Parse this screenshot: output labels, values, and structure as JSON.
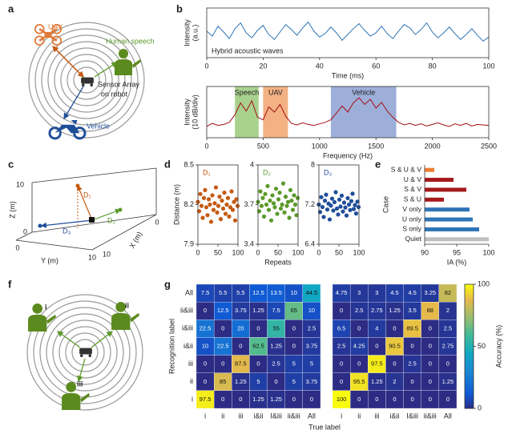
{
  "panel_labels": [
    "a",
    "b",
    "c",
    "d",
    "e",
    "f",
    "g"
  ],
  "diagram_a": {
    "uav": "UAV",
    "speech": "Human speech",
    "robot": [
      "Sensor Array",
      "on robot"
    ],
    "vehicle": "Vehicle"
  },
  "diagram_c": {
    "z_label": "Z (m)",
    "y_label": "Y (m)",
    "x_label": "X (m)",
    "z_ticks": [
      "10",
      "0"
    ],
    "y_ticks": [
      "0",
      "10"
    ],
    "x_ticks": [
      "10",
      "0"
    ],
    "sources": [
      "D₁",
      "D₂",
      "D₃"
    ]
  },
  "diagram_f": {
    "persons": [
      "i",
      "ii",
      "iii"
    ]
  },
  "chart_data": [
    {
      "type": "line",
      "annotation": "Hybrid acoustic waves",
      "x_label": "Time (ms)",
      "y_label": [
        "Intensity",
        "(a.u.)"
      ],
      "color": "#2e75b6",
      "x": [
        0,
        2,
        4,
        6,
        8,
        10,
        12,
        14,
        16,
        18,
        20,
        22,
        24,
        26,
        28,
        30,
        32,
        34,
        36,
        38,
        40,
        42,
        44,
        46,
        48,
        50,
        52,
        54,
        56,
        58,
        60,
        62,
        64,
        66,
        68,
        70,
        72,
        74,
        76,
        78,
        80,
        82,
        84,
        86,
        88,
        90,
        92,
        94,
        96,
        98,
        100
      ],
      "values": [
        5.2,
        4.6,
        5.8,
        5.1,
        4.3,
        5.5,
        6.2,
        5.0,
        4.4,
        5.3,
        5.9,
        4.8,
        4.2,
        5.1,
        6.0,
        5.4,
        4.7,
        5.6,
        6.3,
        5.2,
        4.5,
        4.9,
        5.7,
        5.0,
        4.1,
        4.8,
        5.5,
        6.1,
        5.3,
        4.6,
        5.0,
        5.8,
        4.9,
        4.3,
        5.2,
        6.0,
        5.6,
        4.8,
        5.4,
        6.2,
        5.1,
        4.4,
        5.0,
        5.7,
        4.9,
        4.2,
        4.8,
        5.5,
        4.7,
        4.0,
        4.5
      ],
      "xlim": [
        0,
        100
      ],
      "xticks": [
        0,
        20,
        40,
        60,
        80,
        100
      ],
      "ylim": [
        2,
        8
      ]
    },
    {
      "type": "line",
      "x_label": "Frequency (Hz)",
      "y_label": [
        "Intensity",
        "(10 dB/div)"
      ],
      "color": "#a50f15",
      "x": [
        0,
        50,
        100,
        150,
        200,
        250,
        300,
        350,
        400,
        450,
        500,
        550,
        600,
        650,
        700,
        750,
        800,
        850,
        900,
        950,
        1000,
        1050,
        1100,
        1150,
        1200,
        1250,
        1300,
        1350,
        1400,
        1450,
        1500,
        1550,
        1600,
        1650,
        1700,
        1750,
        1800,
        1850,
        1900,
        1950,
        2000,
        2050,
        2100,
        2150,
        2200,
        2250,
        2300,
        2350,
        2400,
        2450,
        2500
      ],
      "values": [
        2.2,
        2.8,
        2.4,
        2.6,
        3.0,
        4.5,
        6.8,
        5.2,
        7.2,
        4.0,
        3.5,
        6.0,
        5.0,
        6.5,
        4.2,
        2.8,
        2.5,
        2.9,
        2.6,
        2.4,
        2.7,
        3.0,
        3.5,
        4.8,
        6.2,
        5.0,
        6.8,
        7.8,
        6.5,
        7.5,
        5.8,
        6.9,
        5.2,
        4.0,
        3.0,
        2.5,
        2.8,
        2.4,
        2.7,
        2.3,
        2.6,
        2.9,
        2.5,
        2.2,
        2.7,
        2.4,
        2.8,
        2.3,
        2.6,
        2.5,
        2.4
      ],
      "regions": [
        {
          "label": "Speech",
          "start": 250,
          "end": 460,
          "color": "#a9d18e"
        },
        {
          "label": "UAV",
          "start": 500,
          "end": 720,
          "color": "#f4b183"
        },
        {
          "label": "Vehicle",
          "start": 1100,
          "end": 1680,
          "color": "#9dafd9"
        }
      ],
      "xlim": [
        0,
        2500
      ],
      "xticks": [
        0,
        500,
        1000,
        1500,
        2000,
        2500
      ],
      "ylim": [
        0,
        10
      ]
    },
    {
      "type": "scatter",
      "label": "D₁",
      "color": "#c55a11",
      "y_label": "Distance (m)",
      "x": [
        0,
        3,
        6,
        9,
        12,
        15,
        18,
        21,
        24,
        27,
        30,
        33,
        36,
        39,
        42,
        45,
        48,
        51,
        54,
        57,
        60,
        63,
        66,
        69,
        72,
        75,
        78,
        81,
        84,
        87,
        90,
        93,
        96,
        99
      ],
      "values": [
        8.22,
        8.15,
        8.28,
        8.19,
        8.1,
        8.25,
        8.31,
        8.18,
        8.12,
        8.24,
        8.2,
        8.07,
        8.27,
        8.16,
        8.21,
        8.33,
        8.14,
        8.19,
        8.26,
        8.09,
        8.23,
        8.17,
        8.29,
        8.13,
        8.2,
        8.25,
        8.11,
        8.18,
        8.3,
        8.16,
        8.22,
        8.08,
        8.24,
        8.19
      ],
      "xlim": [
        0,
        100
      ],
      "xticks": [
        0,
        50,
        100
      ],
      "ylim": [
        7.9,
        8.5
      ],
      "yticks": [
        7.9,
        8.2,
        8.5
      ]
    },
    {
      "type": "scatter",
      "label": "D₂",
      "color": "#5b9a2a",
      "x_label": "Repeats",
      "x": [
        0,
        3,
        6,
        9,
        12,
        15,
        18,
        21,
        24,
        27,
        30,
        33,
        36,
        39,
        42,
        45,
        48,
        51,
        54,
        57,
        60,
        63,
        66,
        69,
        72,
        75,
        78,
        81,
        84,
        87,
        90,
        93,
        96,
        99
      ],
      "values": [
        3.72,
        3.65,
        3.8,
        3.69,
        3.75,
        3.61,
        3.78,
        3.7,
        3.84,
        3.66,
        3.73,
        3.58,
        3.77,
        3.71,
        3.68,
        3.82,
        3.63,
        3.74,
        3.79,
        3.67,
        3.7,
        3.86,
        3.64,
        3.76,
        3.69,
        3.72,
        3.6,
        3.81,
        3.73,
        3.66,
        3.77,
        3.7,
        3.62,
        3.75
      ],
      "xlim": [
        0,
        100
      ],
      "xticks": [
        0,
        50,
        100
      ],
      "ylim": [
        3.4,
        4
      ],
      "yticks": [
        3.4,
        3.7,
        4
      ]
    },
    {
      "type": "scatter",
      "label": "D₃",
      "color": "#1f4e99",
      "x": [
        0,
        3,
        6,
        9,
        12,
        15,
        18,
        21,
        24,
        27,
        30,
        33,
        36,
        39,
        42,
        45,
        48,
        51,
        54,
        57,
        60,
        63,
        66,
        69,
        72,
        75,
        78,
        81,
        84,
        87,
        90,
        93,
        96,
        99
      ],
      "values": [
        7.2,
        7.05,
        7.35,
        7.15,
        6.95,
        7.28,
        7.4,
        7.1,
        7.22,
        6.9,
        7.18,
        7.32,
        7.08,
        7.25,
        7.45,
        7.12,
        7.0,
        7.3,
        7.16,
        7.38,
        7.06,
        7.24,
        7.14,
        6.98,
        7.33,
        7.2,
        7.09,
        7.27,
        7.42,
        7.11,
        7.19,
        7.02,
        7.26,
        7.15
      ],
      "xlim": [
        0,
        100
      ],
      "xticks": [
        0,
        50,
        100
      ],
      "ylim": [
        6.4,
        8
      ],
      "yticks": [
        6.4,
        7.2,
        8
      ]
    },
    {
      "type": "hbar",
      "x_label": "IA (%)",
      "y_label": "Case",
      "categories": [
        "S & U & V",
        "U & V",
        "S & V",
        "S & U",
        "V only",
        "U only",
        "S only",
        "Quiet"
      ],
      "values": [
        91.5,
        94.5,
        96.5,
        93,
        97,
        97.5,
        98.5,
        100
      ],
      "colors": [
        "#ed7d31",
        "#a5191b",
        "#a5191b",
        "#a5191b",
        "#2e75b6",
        "#2e75b6",
        "#2e75b6",
        "#bfbfbf"
      ],
      "xlim": [
        90,
        100
      ],
      "xticks": [
        90,
        95,
        100
      ]
    },
    {
      "type": "heatmap",
      "x_label": "True label",
      "y_label": "Recognition label",
      "x_categories": [
        "i",
        "ii",
        "iii",
        "i&ii",
        "I&iii",
        "ii&iii",
        "All"
      ],
      "y_categories": [
        "All",
        "ii&iii",
        "i&iii",
        "i&ii",
        "iii",
        "ii",
        "i"
      ],
      "values": [
        [
          7.5,
          5.5,
          5.5,
          12.5,
          13.5,
          10,
          44.5
        ],
        [
          0,
          12.5,
          3.75,
          1.25,
          7.5,
          65,
          10
        ],
        [
          22.5,
          0,
          20,
          0,
          55,
          0,
          2.5
        ],
        [
          10,
          22.5,
          0,
          62.5,
          1.25,
          0,
          3.75
        ],
        [
          0,
          0,
          87.5,
          0,
          2.5,
          5,
          5
        ],
        [
          0,
          85,
          1.25,
          5,
          0,
          5,
          3.75
        ],
        [
          97.5,
          0,
          0,
          1.25,
          1.25,
          0,
          0
        ]
      ],
      "zlim": [
        0,
        100
      ]
    },
    {
      "type": "heatmap",
      "x_categories": [
        "i",
        "ii",
        "iii",
        "i&ii",
        "I&iii",
        "ii&iii",
        "All"
      ],
      "values": [
        [
          4.75,
          3,
          3,
          4.5,
          4.5,
          3.25,
          82
        ],
        [
          0,
          2.5,
          2.75,
          1.25,
          3.5,
          88,
          2
        ],
        [
          6.5,
          0,
          4,
          0,
          89.5,
          0,
          2.5
        ],
        [
          2.5,
          4.25,
          0,
          90.5,
          0,
          0,
          2.75
        ],
        [
          0,
          0,
          97.5,
          0,
          2.5,
          0,
          0
        ],
        [
          0,
          95.5,
          1.25,
          2,
          0,
          0,
          1.25
        ],
        [
          100,
          0,
          0,
          0,
          0,
          0,
          0
        ]
      ],
      "zlim": [
        0,
        100
      ],
      "colorbar_label": "Accuracy (%)",
      "colorbar_ticks": [
        0,
        50,
        100
      ]
    }
  ]
}
